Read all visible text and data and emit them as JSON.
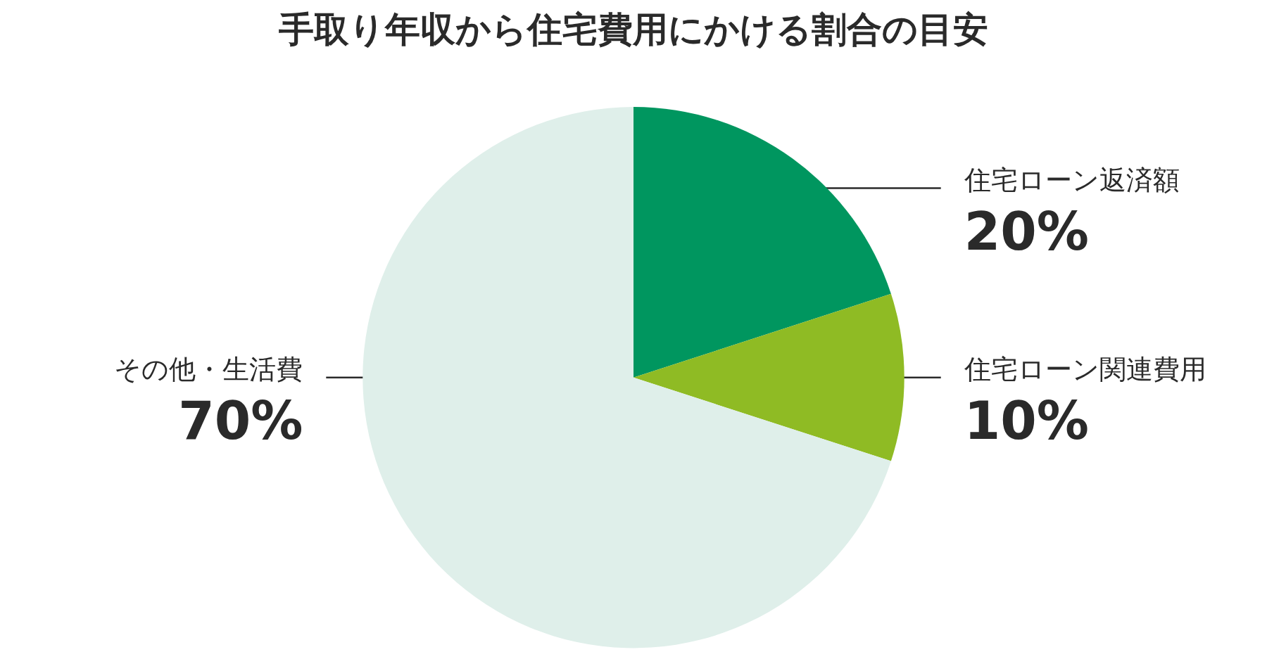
{
  "chart_data": {
    "type": "pie",
    "title": "手取り年収から住宅費用にかける割合の目安",
    "categories": [
      "住宅ローン返済額",
      "住宅ローン関連費用",
      "その他・生活費"
    ],
    "values": [
      20,
      10,
      70
    ],
    "colors": [
      "#00965f",
      "#8fbb24",
      "#dfefea"
    ],
    "value_labels": [
      "20%",
      "10%",
      "70%"
    ]
  }
}
